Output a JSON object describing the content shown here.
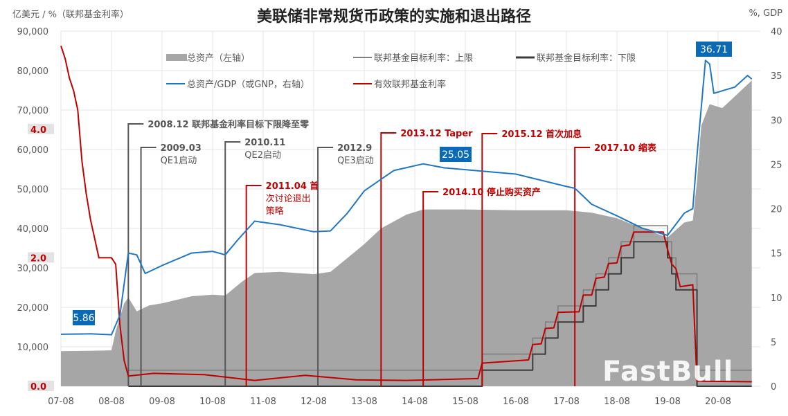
{
  "chart_data": {
    "type": "line",
    "title": "美联储非常规货币政策的实施和退出路径",
    "left_axis_label": "亿美元 / %（联邦基金利率）",
    "right_axis_label": "%, GDP",
    "left_ylim": [
      0,
      90000
    ],
    "left_ticks": [
      "90,000",
      "80,000",
      "70,000",
      "60,000",
      "50,000",
      "40,000",
      "30,000",
      "20,000",
      "10,000"
    ],
    "rate_ylim": [
      0,
      5.5
    ],
    "rate_ticks": [
      "4.0",
      "2.0",
      "0.0"
    ],
    "right_ylim": [
      0,
      40
    ],
    "right_ticks": [
      "40",
      "35",
      "30",
      "25",
      "20",
      "15",
      "10",
      "5",
      "0"
    ],
    "x_ticks": [
      "07-08",
      "08-08",
      "09-08",
      "10-08",
      "11-08",
      "12-08",
      "13-08",
      "14-08",
      "15-08",
      "16-08",
      "17-08",
      "18-08",
      "19-08",
      "20-08"
    ],
    "grid": true,
    "legend_placement": "top",
    "legend": [
      {
        "label": "总资产（左轴）",
        "color": "#a6a6a6",
        "kind": "area"
      },
      {
        "label": "联邦基金目标利率：上限",
        "color": "#7f7f7f",
        "kind": "line"
      },
      {
        "label": "联邦基金目标利率：下限",
        "color": "#3a3a3a",
        "kind": "line"
      },
      {
        "label": "总资产/GDP（或GNP，右轴）",
        "color": "#1f77c4",
        "kind": "line"
      },
      {
        "label": "有效联邦基金利率",
        "color": "#c00000",
        "kind": "line"
      }
    ],
    "series": [
      {
        "name": "总资产（左轴）",
        "axis": "left",
        "points": [
          [
            "2007-08",
            8900
          ],
          [
            "2008-03",
            9000
          ],
          [
            "2008-08",
            9100
          ],
          [
            "2008-09",
            14000
          ],
          [
            "2008-11",
            21000
          ],
          [
            "2008-12",
            22500
          ],
          [
            "2009-02",
            19000
          ],
          [
            "2009-05",
            20500
          ],
          [
            "2009-08",
            21000
          ],
          [
            "2010-03",
            22800
          ],
          [
            "2010-08",
            23200
          ],
          [
            "2010-11",
            23000
          ],
          [
            "2011-03",
            26500
          ],
          [
            "2011-06",
            28700
          ],
          [
            "2011-12",
            29000
          ],
          [
            "2012-08",
            28400
          ],
          [
            "2012-12",
            29000
          ],
          [
            "2013-04",
            32500
          ],
          [
            "2013-08",
            36000
          ],
          [
            "2013-12",
            40000
          ],
          [
            "2014-06",
            43500
          ],
          [
            "2014-10",
            44800
          ],
          [
            "2015-08",
            44800
          ],
          [
            "2016-08",
            44600
          ],
          [
            "2017-08",
            44600
          ],
          [
            "2018-02",
            44000
          ],
          [
            "2018-08",
            42600
          ],
          [
            "2019-02",
            40000
          ],
          [
            "2019-08",
            37700
          ],
          [
            "2019-12",
            41500
          ],
          [
            "2020-02",
            42000
          ],
          [
            "2020-03",
            52000
          ],
          [
            "2020-04",
            66000
          ],
          [
            "2020-06",
            71500
          ],
          [
            "2020-09",
            70500
          ],
          [
            "2020-12",
            73500
          ],
          [
            "2021-04",
            77500
          ]
        ]
      },
      {
        "name": "总资产/GDP（或GNP，右轴）",
        "axis": "right",
        "points": [
          [
            "2007-08",
            5.86
          ],
          [
            "2008-03",
            5.9
          ],
          [
            "2008-08",
            5.8
          ],
          [
            "2008-10",
            8
          ],
          [
            "2008-12",
            15
          ],
          [
            "2009-02",
            14.8
          ],
          [
            "2009-04",
            12.7
          ],
          [
            "2009-08",
            13.6
          ],
          [
            "2010-03",
            15
          ],
          [
            "2010-08",
            15.2
          ],
          [
            "2010-11",
            14.8
          ],
          [
            "2011-02",
            16.5
          ],
          [
            "2011-06",
            18.6
          ],
          [
            "2011-12",
            18.2
          ],
          [
            "2012-08",
            17.4
          ],
          [
            "2012-12",
            17.5
          ],
          [
            "2013-04",
            19.5
          ],
          [
            "2013-08",
            22
          ],
          [
            "2014-03",
            24.3
          ],
          [
            "2014-10",
            25.05
          ],
          [
            "2015-03",
            24.6
          ],
          [
            "2015-08",
            24.4
          ],
          [
            "2016-08",
            23.9
          ],
          [
            "2017-08",
            22.5
          ],
          [
            "2017-10",
            22.3
          ],
          [
            "2018-02",
            20.5
          ],
          [
            "2018-08",
            19.2
          ],
          [
            "2019-02",
            17.8
          ],
          [
            "2019-08",
            17
          ],
          [
            "2019-12",
            19.5
          ],
          [
            "2020-02",
            20
          ],
          [
            "2020-03",
            26
          ],
          [
            "2020-05",
            36.71
          ],
          [
            "2020-06",
            36.3
          ],
          [
            "2020-07",
            33
          ],
          [
            "2020-12",
            33.7
          ],
          [
            "2021-03",
            35
          ],
          [
            "2021-04",
            34.6
          ]
        ]
      },
      {
        "name": "有效联邦基金利率",
        "axis": "rate",
        "points": [
          [
            "2007-08",
            5.3
          ],
          [
            "2007-09",
            5.1
          ],
          [
            "2007-10",
            4.8
          ],
          [
            "2007-11",
            4.6
          ],
          [
            "2007-12",
            4.3
          ],
          [
            "2008-01",
            3.5
          ],
          [
            "2008-02",
            3.0
          ],
          [
            "2008-03",
            2.6
          ],
          [
            "2008-05",
            2.0
          ],
          [
            "2008-08",
            2.0
          ],
          [
            "2008-09",
            1.9
          ],
          [
            "2008-10",
            0.95
          ],
          [
            "2008-11",
            0.4
          ],
          [
            "2008-12",
            0.16
          ],
          [
            "2009-06",
            0.2
          ],
          [
            "2010-06",
            0.18
          ],
          [
            "2011-06",
            0.09
          ],
          [
            "2012-06",
            0.17
          ],
          [
            "2013-06",
            0.1
          ],
          [
            "2014-06",
            0.09
          ],
          [
            "2015-11",
            0.12
          ],
          [
            "2015-12",
            0.36
          ],
          [
            "2016-11",
            0.41
          ],
          [
            "2016-12",
            0.65
          ],
          [
            "2017-02",
            0.66
          ],
          [
            "2017-03",
            0.9
          ],
          [
            "2017-05",
            0.91
          ],
          [
            "2017-06",
            1.15
          ],
          [
            "2017-11",
            1.16
          ],
          [
            "2017-12",
            1.42
          ],
          [
            "2018-02",
            1.42
          ],
          [
            "2018-03",
            1.68
          ],
          [
            "2018-05",
            1.7
          ],
          [
            "2018-06",
            1.91
          ],
          [
            "2018-08",
            1.92
          ],
          [
            "2018-09",
            2.18
          ],
          [
            "2018-11",
            2.2
          ],
          [
            "2018-12",
            2.4
          ],
          [
            "2019-07",
            2.4
          ],
          [
            "2019-08",
            2.13
          ],
          [
            "2019-09",
            1.9
          ],
          [
            "2019-10",
            1.83
          ],
          [
            "2019-11",
            1.55
          ],
          [
            "2020-02",
            1.58
          ],
          [
            "2020-03",
            0.08
          ],
          [
            "2021-04",
            0.07
          ]
        ]
      },
      {
        "name": "联邦基金目标利率：上限",
        "axis": "rate",
        "step": true,
        "points": [
          [
            "2008-12",
            0.25
          ],
          [
            "2015-12",
            0.5
          ],
          [
            "2016-12",
            0.75
          ],
          [
            "2017-03",
            1.0
          ],
          [
            "2017-06",
            1.25
          ],
          [
            "2017-12",
            1.5
          ],
          [
            "2018-03",
            1.75
          ],
          [
            "2018-06",
            2.0
          ],
          [
            "2018-09",
            2.25
          ],
          [
            "2018-12",
            2.5
          ],
          [
            "2019-08",
            2.25
          ],
          [
            "2019-09",
            2.0
          ],
          [
            "2019-10",
            1.75
          ],
          [
            "2020-03",
            0.25
          ],
          [
            "2021-04",
            0.25
          ]
        ]
      },
      {
        "name": "联邦基金目标利率：下限",
        "axis": "rate",
        "step": true,
        "points": [
          [
            "2008-12",
            0.0
          ],
          [
            "2015-12",
            0.25
          ],
          [
            "2016-12",
            0.5
          ],
          [
            "2017-03",
            0.75
          ],
          [
            "2017-06",
            1.0
          ],
          [
            "2017-12",
            1.25
          ],
          [
            "2018-03",
            1.5
          ],
          [
            "2018-06",
            1.75
          ],
          [
            "2018-09",
            2.0
          ],
          [
            "2018-12",
            2.25
          ],
          [
            "2019-08",
            2.0
          ],
          [
            "2019-09",
            1.75
          ],
          [
            "2019-10",
            1.5
          ],
          [
            "2020-03",
            0.0
          ],
          [
            "2021-04",
            0.0
          ]
        ]
      }
    ],
    "callouts": [
      {
        "label": "5.86",
        "date": "2007-08"
      },
      {
        "label": "25.05",
        "date": "2014-10"
      },
      {
        "label": "36.71",
        "date": "2020-05"
      }
    ],
    "annotations": [
      {
        "date": "2008-12",
        "color": "#555555",
        "lines": [
          "2008.12 联邦基金利率目标下限降至零"
        ]
      },
      {
        "date": "2009-03",
        "color": "#555555",
        "lines": [
          "2009.03",
          "QE1启动"
        ]
      },
      {
        "date": "2010-11",
        "color": "#555555",
        "lines": [
          "2010.11",
          "QE2启动"
        ]
      },
      {
        "date": "2011-04",
        "color": "#c00000",
        "lines": [
          "2011.04 首",
          "次讨论退出",
          "策略"
        ]
      },
      {
        "date": "2012-09",
        "color": "#555555",
        "lines": [
          "2012.9",
          "QE3启动"
        ]
      },
      {
        "date": "2013-12",
        "color": "#c00000",
        "lines": [
          "2013.12 Taper"
        ]
      },
      {
        "date": "2014-10",
        "color": "#c00000",
        "lines": [
          "2014.10 停止购买资产"
        ]
      },
      {
        "date": "2015-12",
        "color": "#c00000",
        "lines": [
          "2015.12 首次加息"
        ]
      },
      {
        "date": "2017-10",
        "color": "#c00000",
        "lines": [
          "2017.10 缩表"
        ]
      }
    ]
  },
  "watermark": "FastBull"
}
